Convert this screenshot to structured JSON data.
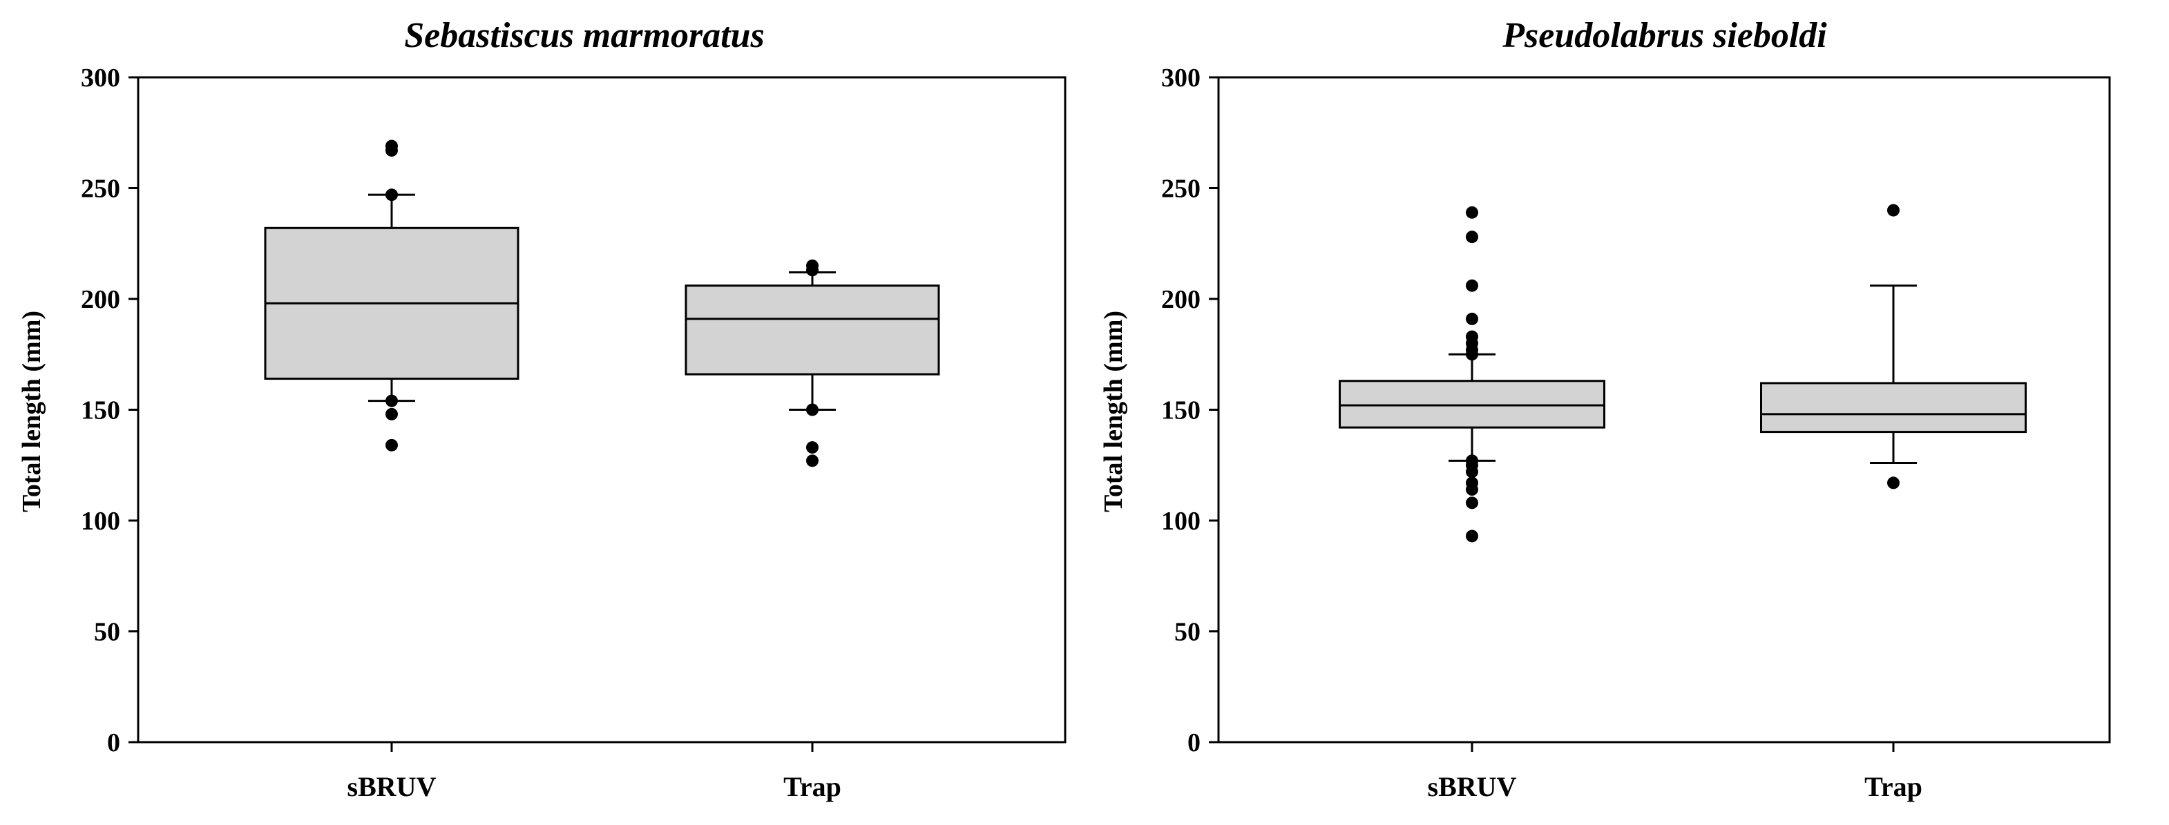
{
  "chart_data": [
    {
      "type": "box",
      "title": "Sebastiscus marmoratus",
      "ylabel": "Total length (mm)",
      "xlabel": "",
      "ylim": [
        0,
        300
      ],
      "yticks": [
        0,
        50,
        100,
        150,
        200,
        250,
        300
      ],
      "grid": false,
      "categories": [
        "sBRUV",
        "Trap"
      ],
      "boxes": [
        {
          "category": "sBRUV",
          "whisker_low": 154,
          "q1": 164,
          "median": 198,
          "q3": 232,
          "whisker_high": 247,
          "outliers": [
            134,
            148,
            154,
            247,
            267,
            269
          ]
        },
        {
          "category": "Trap",
          "whisker_low": 150,
          "q1": 166,
          "median": 191,
          "q3": 206,
          "whisker_high": 212,
          "outliers": [
            127,
            133,
            150,
            213,
            215
          ]
        }
      ]
    },
    {
      "type": "box",
      "title": "Pseudolabrus sieboldi",
      "ylabel": "Total length (mm)",
      "xlabel": "",
      "ylim": [
        0,
        300
      ],
      "yticks": [
        0,
        50,
        100,
        150,
        200,
        250,
        300
      ],
      "grid": false,
      "categories": [
        "sBRUV",
        "Trap"
      ],
      "boxes": [
        {
          "category": "sBRUV",
          "whisker_low": 127,
          "q1": 142,
          "median": 152,
          "q3": 163,
          "whisker_high": 175,
          "outliers": [
            93,
            108,
            114,
            117,
            122,
            125,
            127,
            175,
            177,
            180,
            183,
            191,
            206,
            228,
            239
          ]
        },
        {
          "category": "Trap",
          "whisker_low": 126,
          "q1": 140,
          "median": 148,
          "q3": 162,
          "whisker_high": 206,
          "outliers": [
            117,
            240
          ]
        }
      ]
    }
  ]
}
